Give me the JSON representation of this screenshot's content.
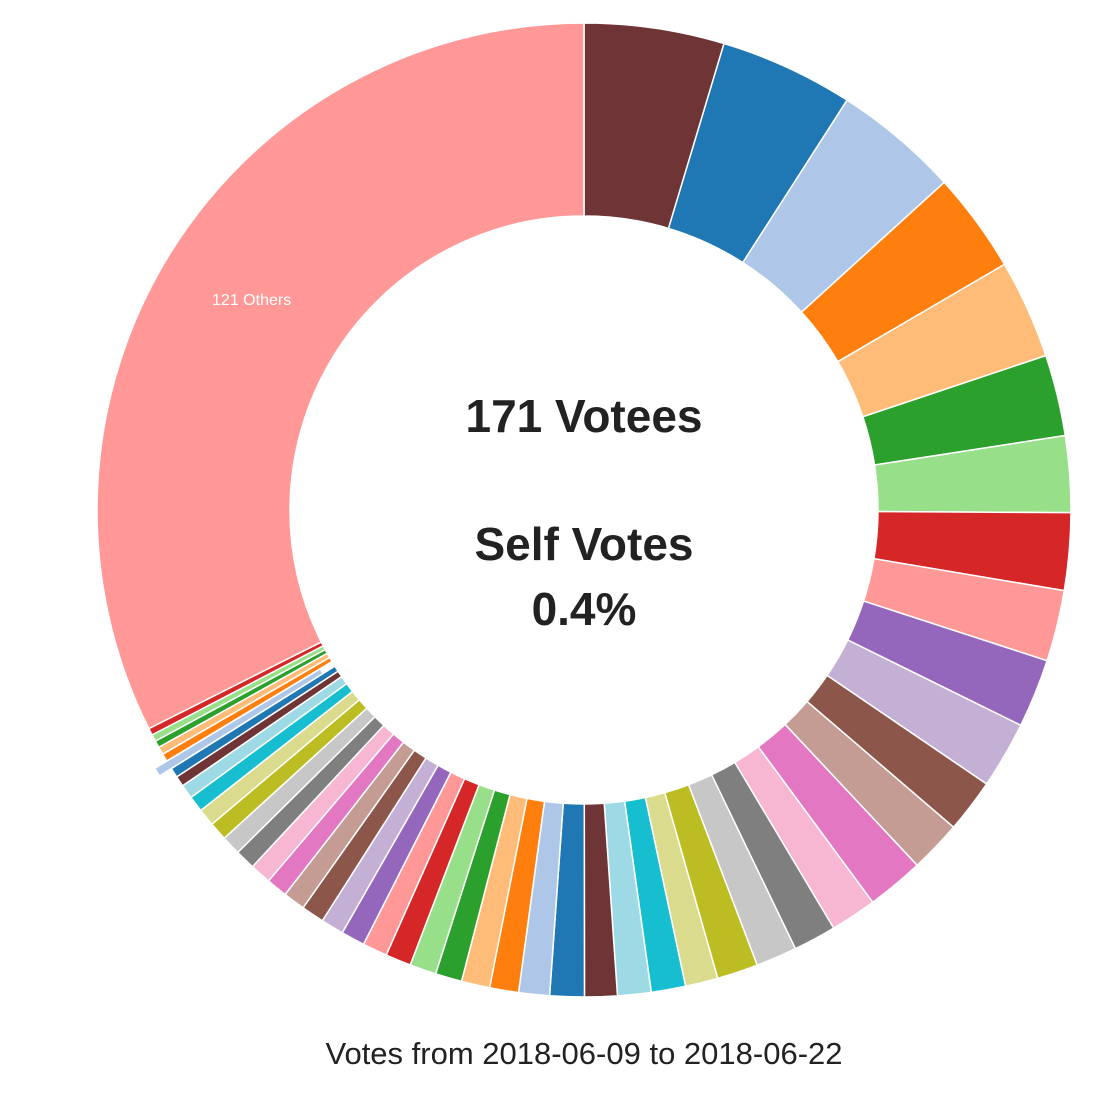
{
  "chart_data": {
    "type": "pie",
    "variant": "donut",
    "center_title": "171 Votees",
    "center_subtitle": "Self Votes",
    "center_value": "0.4%",
    "caption": "Votes from 2018-06-09 to 2018-06-22",
    "unit": "percent of votes",
    "others_label": "121 Others",
    "highlighted_index": 44,
    "palette": [
      "#6f3435",
      "#1f77b4",
      "#aec7e8",
      "#ff7f0e",
      "#ffbb78",
      "#2ca02c",
      "#98df8a",
      "#d62728",
      "#ff9896",
      "#9467bd",
      "#c5b0d5",
      "#8c564b",
      "#c49c94",
      "#e377c2",
      "#f7b6d2",
      "#7f7f7f",
      "#c7c7c7",
      "#bcbd22",
      "#dbdb8d",
      "#17becf",
      "#9edae5"
    ],
    "values": [
      4.64,
      4.44,
      4.17,
      3.33,
      3.28,
      2.69,
      2.53,
      2.56,
      2.36,
      2.28,
      2.22,
      1.78,
      1.72,
      1.89,
      1.53,
      1.42,
      1.36,
      1.36,
      1.08,
      1.14,
      1.11,
      1.08,
      1.14,
      1.02,
      0.96,
      0.94,
      0.88,
      0.88,
      0.85,
      0.82,
      0.79,
      0.76,
      0.76,
      0.73,
      0.7,
      0.7,
      0.67,
      0.64,
      0.61,
      0.58,
      0.53,
      0.47,
      0.35,
      0.32,
      0.29,
      0.26,
      0.26,
      0.23,
      0.23,
      0.23,
      32.4
    ],
    "labels_shown": {
      "50": "121 Others"
    }
  }
}
